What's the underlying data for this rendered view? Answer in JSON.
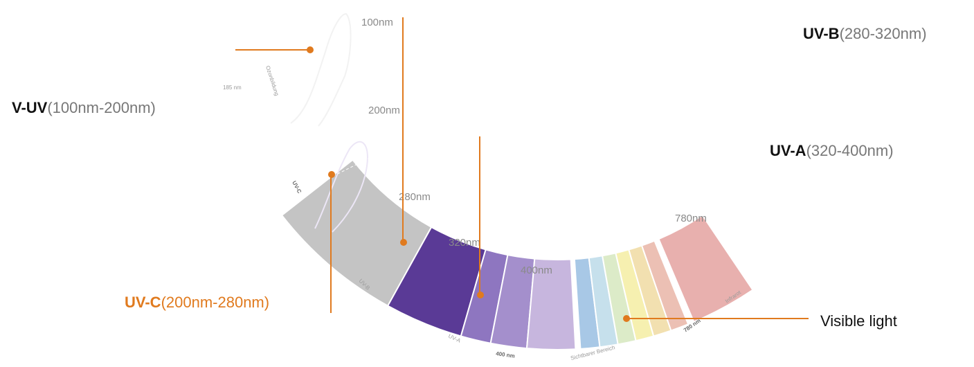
{
  "categories": {
    "uvb": {
      "key": "UV-B",
      "range": "(280-320nm)"
    },
    "vuv": {
      "key": "V-UV",
      "range": "(100nm-200nm)"
    },
    "uva": {
      "key": "UV-A",
      "range": "(320-400nm)"
    },
    "uvc": {
      "key": "UV-C",
      "range": "(200nm-280nm)"
    }
  },
  "visible_light": "Visible light",
  "wavelength_labels": {
    "nm100": "100nm",
    "nm200": "200nm",
    "nm280": "280nm",
    "nm320": "320nm",
    "nm400": "400nm",
    "nm780": "780nm"
  },
  "band_text": {
    "nm185": "185 nm",
    "ozone": "Ozonbildung",
    "uvc": "UV-C",
    "uvb": "UV-B",
    "uva": "UV-A",
    "nm400_small": "400 nm",
    "visible": "Sichtbarer Bereich",
    "nm780_small": "780 nm",
    "infrared": "Infrarot"
  },
  "colors": {
    "accent": "#e07a1e",
    "vuv_band": "#c4c4c4",
    "uvc_band": "#5a3a96",
    "uvb_band": "#8e76c0",
    "uva_band": "#c7b6de",
    "infrared_band": "#e8b0ae"
  }
}
